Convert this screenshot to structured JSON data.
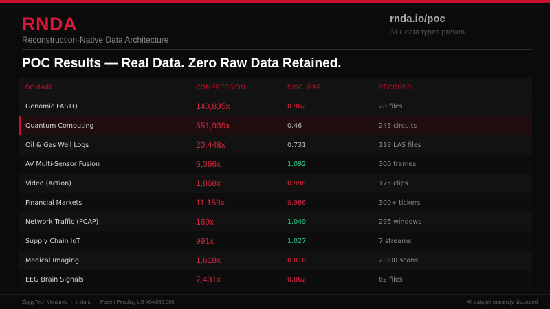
{
  "brand": {
    "name": "RNDA",
    "subtitle": "Reconstruction-Native Data Architecture"
  },
  "site": {
    "url": "rnda.io/poc",
    "tagline": "31+ data types proven"
  },
  "headline": "POC Results — Real Data. Zero Raw Data Retained.",
  "colors": {
    "accent": "#c8102e",
    "gap_good": "#2ecc8a",
    "gap_neutral": "#b8b8b8"
  },
  "table": {
    "headers": {
      "domain": "DOMAIN",
      "compression": "COMPRESSION",
      "gap": "DISC. GAP",
      "records": "RECORDS"
    },
    "rows": [
      {
        "domain": "Genomic FASTQ",
        "compression": "140,835x",
        "gap": "0.962",
        "gap_status": "red",
        "records": "28 files"
      },
      {
        "domain": "Quantum Computing",
        "compression": "351,939x",
        "gap": "0.46",
        "gap_status": "white",
        "records": "243 circuits",
        "highlighted": true
      },
      {
        "domain": "Oil & Gas Well Logs",
        "compression": "20,448x",
        "gap": "0.731",
        "gap_status": "white",
        "records": "118 LAS files"
      },
      {
        "domain": "AV Multi-Sensor Fusion",
        "compression": "6,366x",
        "gap": "1.092",
        "gap_status": "green",
        "records": "300 frames"
      },
      {
        "domain": "Video (Action)",
        "compression": "1,868x",
        "gap": "0.998",
        "gap_status": "red",
        "records": "175 clips"
      },
      {
        "domain": "Financial Markets",
        "compression": "11,153x",
        "gap": "0.986",
        "gap_status": "red",
        "records": "300+ tickers"
      },
      {
        "domain": "Network Traffic (PCAP)",
        "compression": "169x",
        "gap": "1.049",
        "gap_status": "green",
        "records": "295 windows"
      },
      {
        "domain": "Supply Chain IoT",
        "compression": "991x",
        "gap": "1.027",
        "gap_status": "green",
        "records": "7 streams"
      },
      {
        "domain": "Medical Imaging",
        "compression": "1,618x",
        "gap": "0.816",
        "gap_status": "red",
        "records": "2,000 scans"
      },
      {
        "domain": "EEG Brain Signals",
        "compression": "7,431x",
        "gap": "0.862",
        "gap_status": "red",
        "records": "62 files"
      }
    ]
  },
  "footer": {
    "company": "ZiggyTech Ventures",
    "site": "rnda.io",
    "patent": "Patent Pending US #64/036,090",
    "note": "All data permanently discarded"
  }
}
